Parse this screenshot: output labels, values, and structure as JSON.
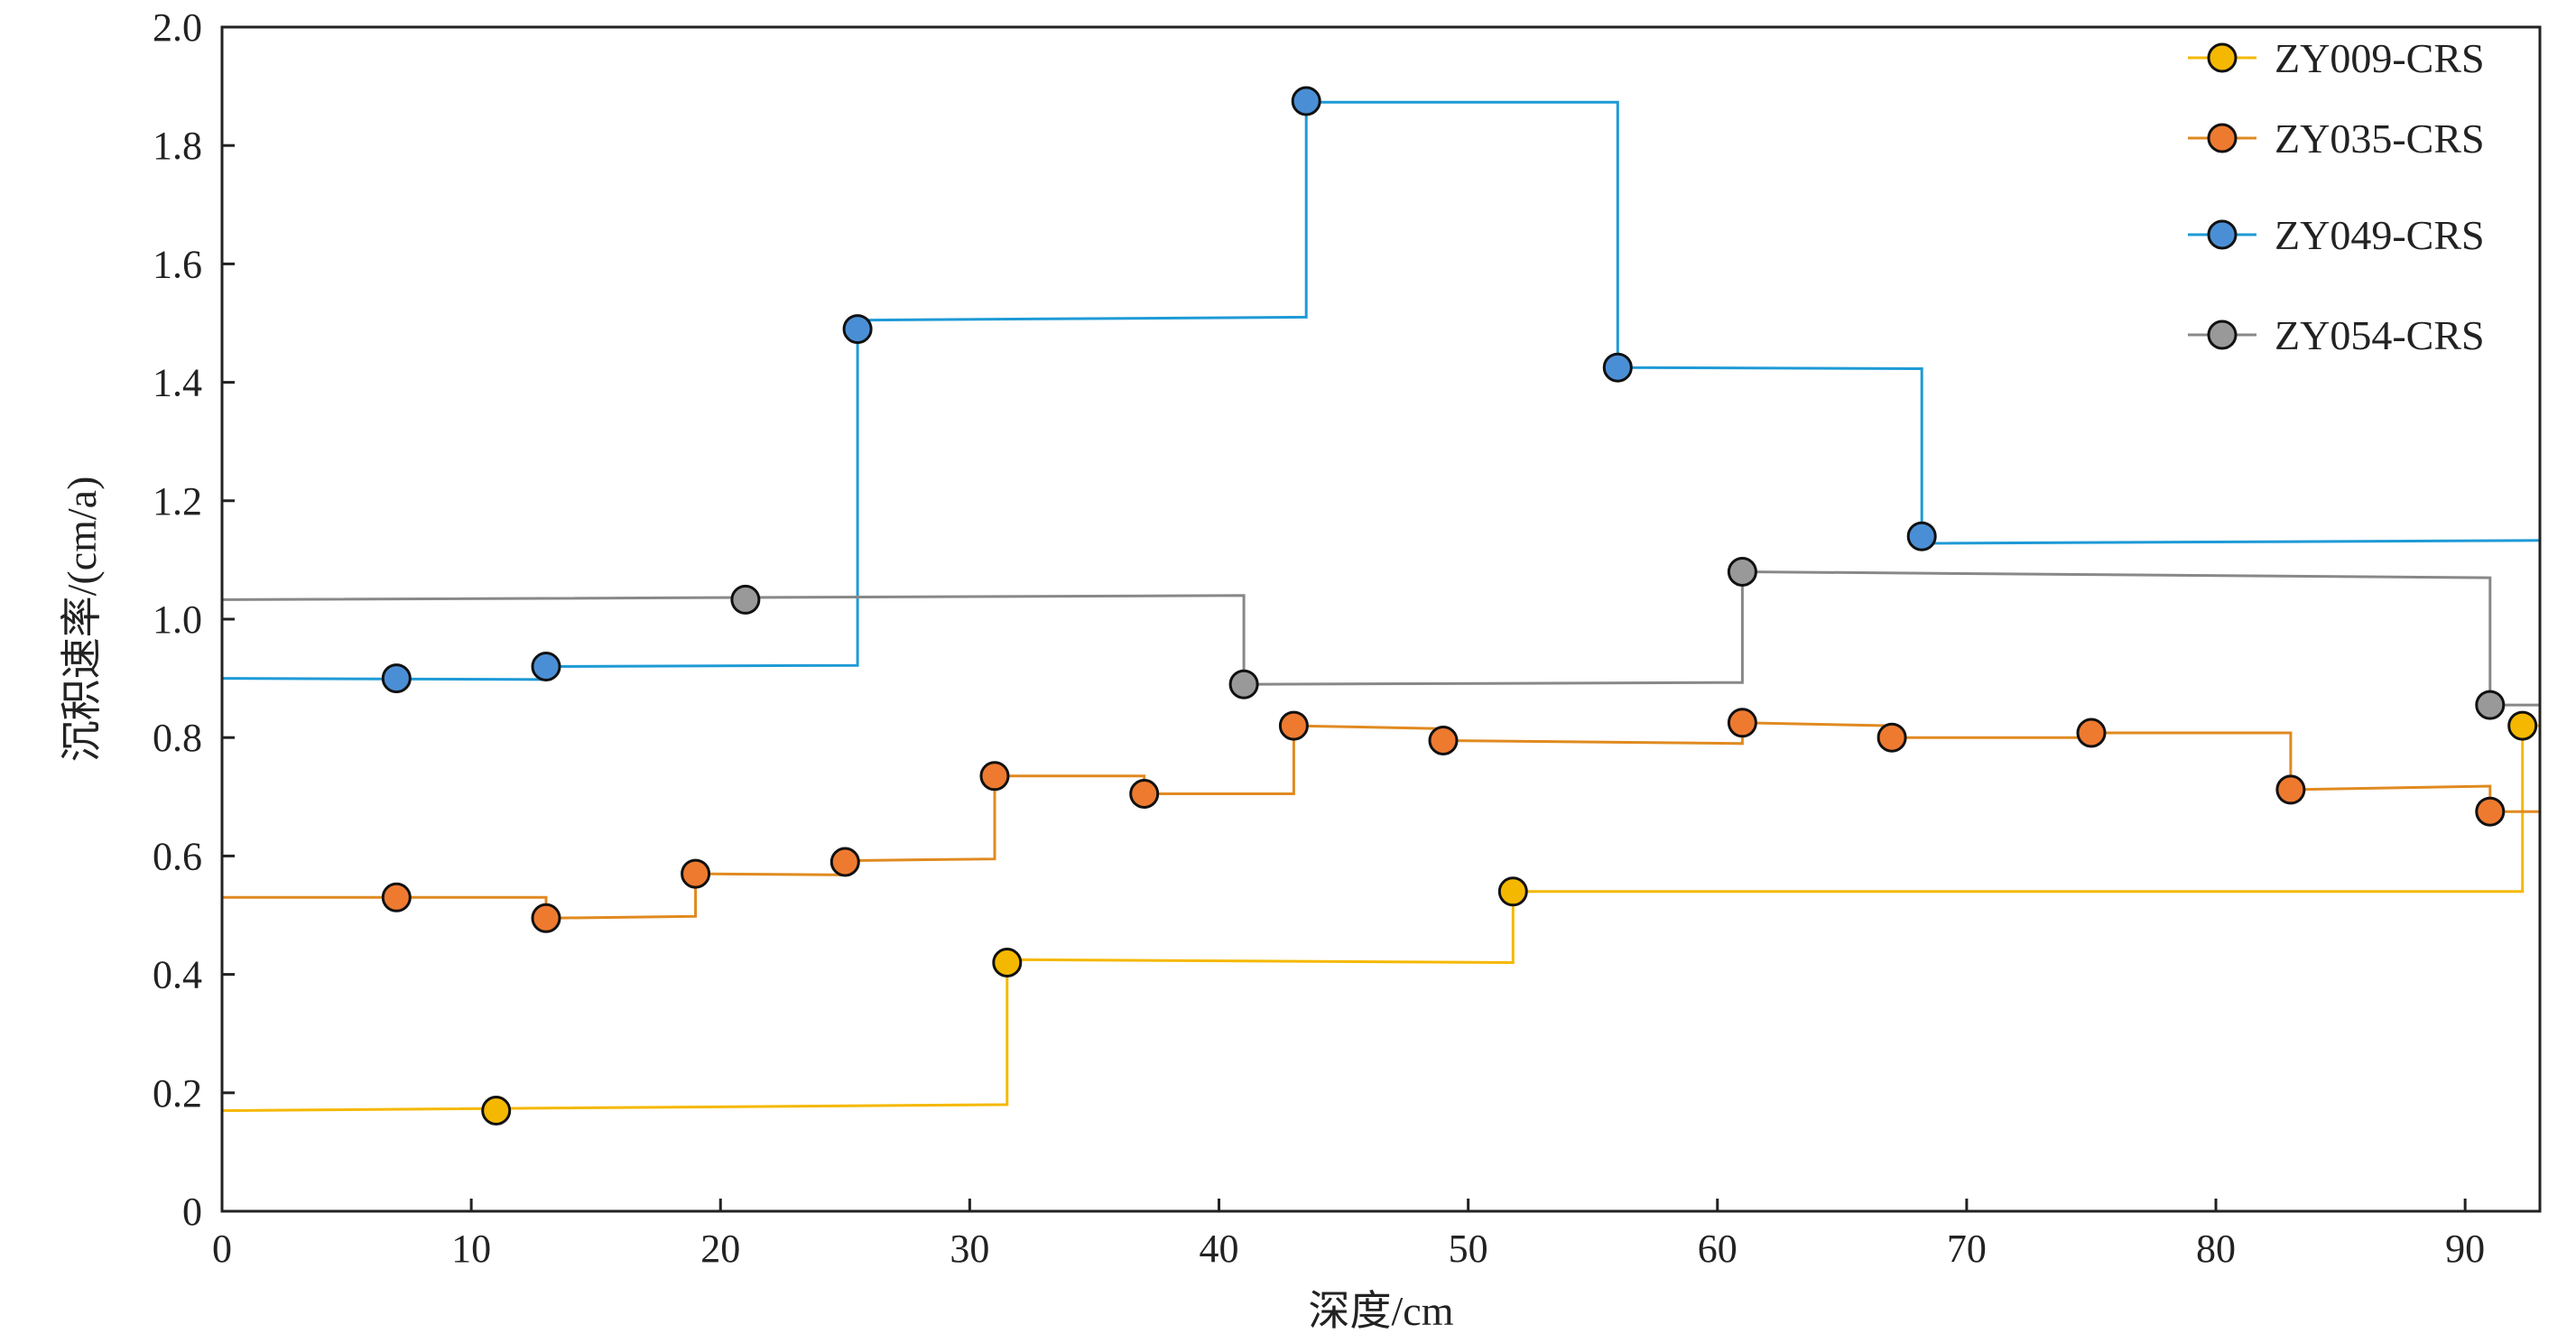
{
  "chart_data": {
    "type": "line",
    "title": "",
    "xlabel": "深度/cm",
    "ylabel": "沉积速率/(cm/a)",
    "xlim": [
      0,
      93
    ],
    "ylim": [
      0,
      2.0
    ],
    "xticks": [
      0,
      10,
      20,
      30,
      40,
      50,
      60,
      70,
      80,
      90
    ],
    "yticks": [
      0,
      0.2,
      0.4,
      0.6,
      0.8,
      1.0,
      1.2,
      1.4,
      1.6,
      1.8,
      2.0
    ],
    "xtick_labels": [
      "0",
      "10",
      "20",
      "30",
      "40",
      "50",
      "60",
      "70",
      "80",
      "90"
    ],
    "ytick_labels": [
      "0",
      "0.2",
      "0.4",
      "0.6",
      "0.8",
      "1.0",
      "1.2",
      "1.4",
      "1.6",
      "1.8",
      "2.0"
    ],
    "grid": false,
    "legend_position": "top-right",
    "series": [
      {
        "name": "ZY009-CRS",
        "color": "#F5B800",
        "line_color": "#F5B800",
        "points": [
          [
            11.0,
            0.17
          ],
          [
            31.5,
            0.42
          ],
          [
            51.8,
            0.54
          ],
          [
            92.3,
            0.82
          ]
        ],
        "steps": [
          [
            0,
            0.17
          ],
          [
            31.5,
            0.18
          ],
          [
            31.5,
            0.425
          ],
          [
            51.8,
            0.42
          ],
          [
            51.8,
            0.54
          ],
          [
            92.3,
            0.54
          ],
          [
            92.3,
            0.82
          ],
          [
            93,
            0.82
          ]
        ]
      },
      {
        "name": "ZY035-CRS",
        "color": "#EE7A30",
        "line_color": "#E08A20",
        "points": [
          [
            7.0,
            0.53
          ],
          [
            13.0,
            0.495
          ],
          [
            19.0,
            0.57
          ],
          [
            25.0,
            0.59
          ],
          [
            31.0,
            0.735
          ],
          [
            37.0,
            0.705
          ],
          [
            43.0,
            0.82
          ],
          [
            49.0,
            0.795
          ],
          [
            61.0,
            0.825
          ],
          [
            67.0,
            0.8
          ],
          [
            75.0,
            0.808
          ],
          [
            83.0,
            0.712
          ],
          [
            91.0,
            0.675
          ]
        ],
        "steps": [
          [
            0,
            0.53
          ],
          [
            13.0,
            0.53
          ],
          [
            13.0,
            0.495
          ],
          [
            19.0,
            0.498
          ],
          [
            19.0,
            0.57
          ],
          [
            25.0,
            0.568
          ],
          [
            25.0,
            0.592
          ],
          [
            31.0,
            0.595
          ],
          [
            31.0,
            0.735
          ],
          [
            37.0,
            0.735
          ],
          [
            37.0,
            0.705
          ],
          [
            43.0,
            0.705
          ],
          [
            43.0,
            0.82
          ],
          [
            49.0,
            0.815
          ],
          [
            49.0,
            0.795
          ],
          [
            61.0,
            0.79
          ],
          [
            61.0,
            0.825
          ],
          [
            67.0,
            0.82
          ],
          [
            67.0,
            0.8
          ],
          [
            75.0,
            0.8
          ],
          [
            75.0,
            0.808
          ],
          [
            83.0,
            0.808
          ],
          [
            83.0,
            0.712
          ],
          [
            91.0,
            0.718
          ],
          [
            91.0,
            0.675
          ],
          [
            93,
            0.675
          ]
        ]
      },
      {
        "name": "ZY049-CRS",
        "color": "#4A8FD6",
        "line_color": "#1E9AD6",
        "points": [
          [
            7.0,
            0.9
          ],
          [
            13.0,
            0.92
          ],
          [
            25.5,
            1.49
          ],
          [
            43.5,
            1.875
          ],
          [
            56.0,
            1.425
          ],
          [
            68.2,
            1.14
          ]
        ],
        "steps": [
          [
            0,
            0.9
          ],
          [
            13.0,
            0.898
          ],
          [
            13.0,
            0.92
          ],
          [
            25.5,
            0.922
          ],
          [
            25.5,
            1.505
          ],
          [
            43.5,
            1.51
          ],
          [
            43.5,
            1.873
          ],
          [
            56.0,
            1.873
          ],
          [
            56.0,
            1.425
          ],
          [
            68.2,
            1.423
          ],
          [
            68.2,
            1.128
          ],
          [
            93,
            1.133
          ]
        ]
      },
      {
        "name": "ZY054-CRS",
        "color": "#999999",
        "line_color": "#888888",
        "points": [
          [
            21.0,
            1.033
          ],
          [
            41.0,
            0.89
          ],
          [
            61.0,
            1.08
          ],
          [
            91.0,
            0.855
          ]
        ],
        "steps": [
          [
            0,
            1.033
          ],
          [
            41.0,
            1.04
          ],
          [
            41.0,
            0.89
          ],
          [
            61.0,
            0.893
          ],
          [
            61.0,
            1.08
          ],
          [
            91.0,
            1.07
          ],
          [
            91.0,
            0.855
          ],
          [
            93,
            0.855
          ]
        ]
      }
    ]
  }
}
